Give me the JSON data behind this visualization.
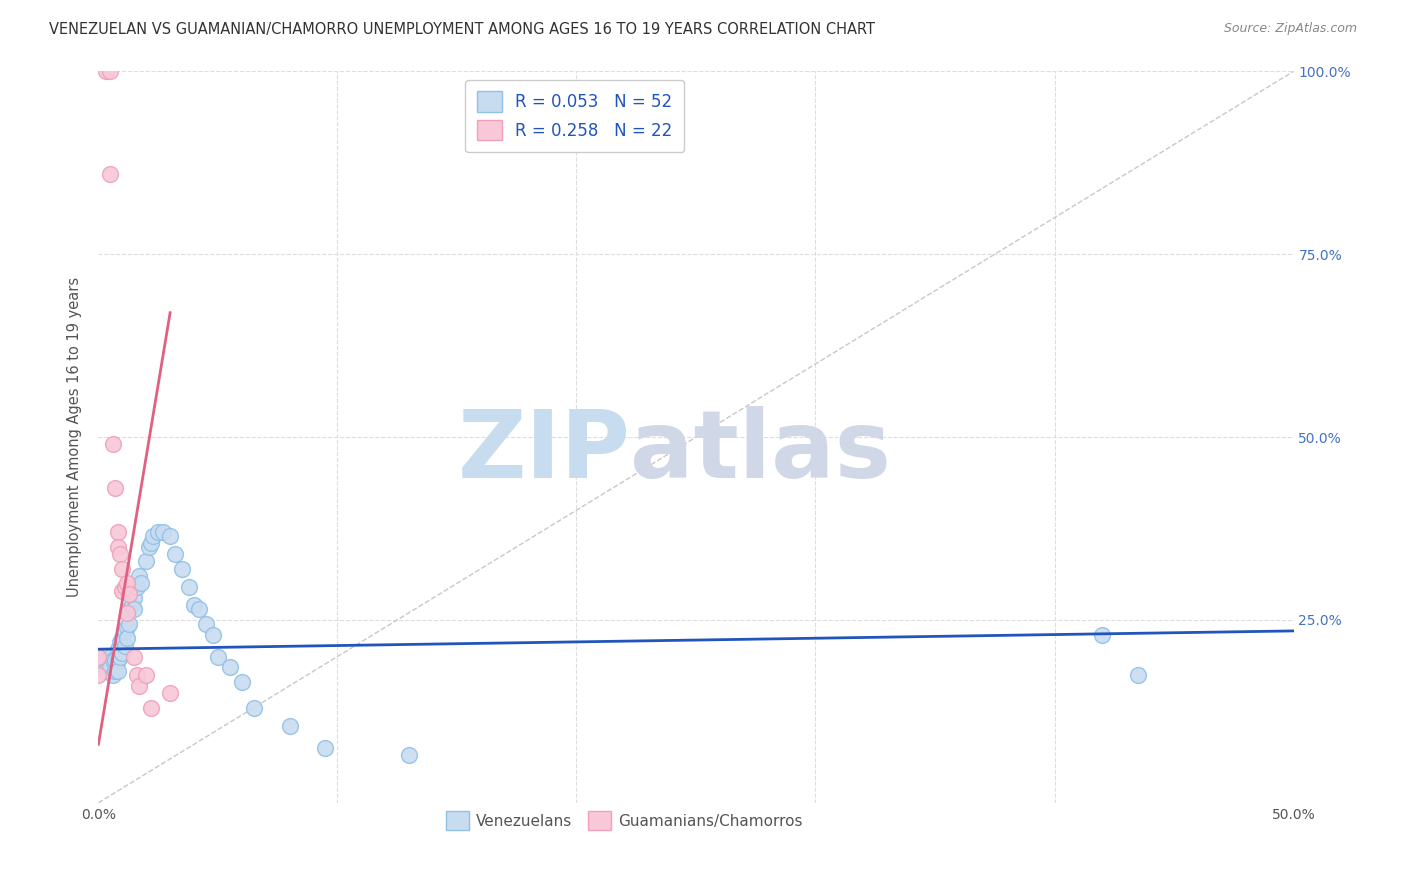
{
  "title": "VENEZUELAN VS GUAMANIAN/CHAMORRO UNEMPLOYMENT AMONG AGES 16 TO 19 YEARS CORRELATION CHART",
  "source": "Source: ZipAtlas.com",
  "ylabel": "Unemployment Among Ages 16 to 19 years",
  "xlim": [
    0.0,
    0.5
  ],
  "ylim": [
    0.0,
    1.0
  ],
  "blue_color": "#90C0E8",
  "blue_fill": "#C8DCF0",
  "pink_color": "#F0A0B8",
  "pink_fill": "#F8C8D8",
  "trend_blue_color": "#2255BB",
  "trend_pink_color": "#E06080",
  "diagonal_color": "#C8C8C8",
  "R_blue": 0.053,
  "N_blue": 52,
  "R_pink": 0.258,
  "N_pink": 22,
  "blue_x": [
    0.0,
    0.0,
    0.003,
    0.003,
    0.005,
    0.005,
    0.006,
    0.006,
    0.007,
    0.007,
    0.008,
    0.008,
    0.008,
    0.009,
    0.009,
    0.01,
    0.01,
    0.011,
    0.011,
    0.012,
    0.012,
    0.013,
    0.013,
    0.014,
    0.015,
    0.015,
    0.016,
    0.017,
    0.018,
    0.02,
    0.021,
    0.022,
    0.023,
    0.025,
    0.027,
    0.03,
    0.032,
    0.035,
    0.038,
    0.04,
    0.042,
    0.045,
    0.048,
    0.05,
    0.055,
    0.06,
    0.065,
    0.08,
    0.095,
    0.13,
    0.42,
    0.435
  ],
  "blue_y": [
    0.2,
    0.185,
    0.195,
    0.18,
    0.2,
    0.185,
    0.195,
    0.175,
    0.195,
    0.18,
    0.21,
    0.195,
    0.18,
    0.22,
    0.2,
    0.225,
    0.205,
    0.235,
    0.215,
    0.24,
    0.225,
    0.265,
    0.245,
    0.27,
    0.28,
    0.265,
    0.295,
    0.31,
    0.3,
    0.33,
    0.35,
    0.355,
    0.365,
    0.37,
    0.37,
    0.365,
    0.34,
    0.32,
    0.295,
    0.27,
    0.265,
    0.245,
    0.23,
    0.2,
    0.185,
    0.165,
    0.13,
    0.105,
    0.075,
    0.065,
    0.23,
    0.175
  ],
  "pink_x": [
    0.0,
    0.0,
    0.003,
    0.005,
    0.005,
    0.006,
    0.007,
    0.008,
    0.008,
    0.009,
    0.01,
    0.01,
    0.011,
    0.012,
    0.012,
    0.013,
    0.015,
    0.016,
    0.017,
    0.02,
    0.022,
    0.03
  ],
  "pink_y": [
    0.2,
    0.175,
    1.0,
    1.0,
    0.86,
    0.49,
    0.43,
    0.37,
    0.35,
    0.34,
    0.32,
    0.29,
    0.295,
    0.3,
    0.26,
    0.285,
    0.2,
    0.175,
    0.16,
    0.175,
    0.13,
    0.15
  ],
  "watermark_zip": "ZIP",
  "watermark_atlas": "atlas",
  "watermark_color": "#C8DCF0",
  "legend_color": "#2255BB",
  "background_color": "#FFFFFF",
  "grid_color": "#DDDDDD"
}
